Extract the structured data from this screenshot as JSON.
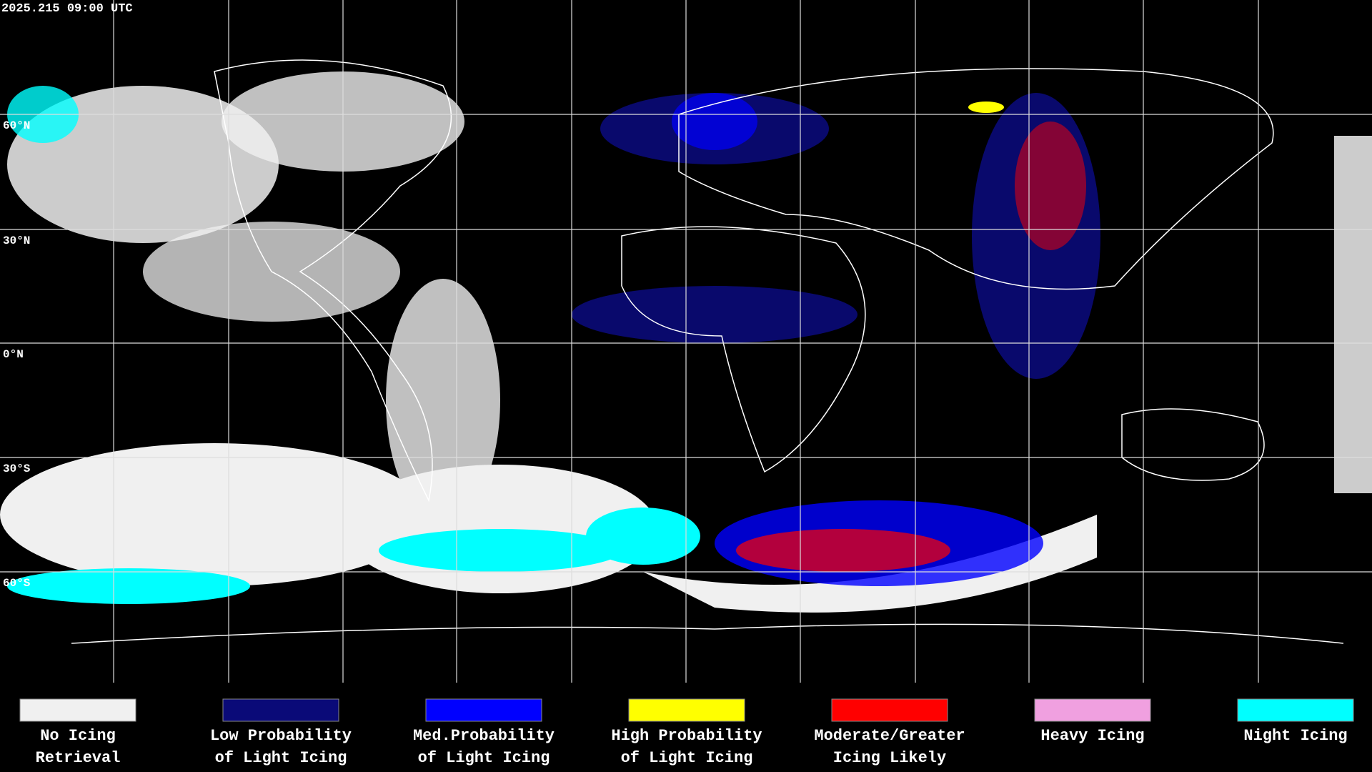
{
  "timestamp": "2025.215 09:00 UTC",
  "map": {
    "latitude_labels": [
      "60°N",
      "30°N",
      "0°N",
      "30°S",
      "60°S"
    ]
  },
  "legend": {
    "items": [
      {
        "color": "#f0f0f0",
        "label": [
          "No Icing",
          "Retrieval"
        ]
      },
      {
        "color": "#0a0a78",
        "label": [
          "Low Probability",
          "of Light Icing"
        ]
      },
      {
        "color": "#0000ff",
        "label": [
          "Med.Probability",
          "of Light Icing"
        ]
      },
      {
        "color": "#ffff00",
        "label": [
          "High Probability",
          "of Light Icing"
        ]
      },
      {
        "color": "#ff0000",
        "label": [
          "Moderate/Greater",
          "Icing Likely"
        ]
      },
      {
        "color": "#f0a0e0",
        "label": [
          "Heavy Icing",
          ""
        ]
      },
      {
        "color": "#00ffff",
        "label": [
          "Night Icing",
          ""
        ]
      }
    ]
  }
}
